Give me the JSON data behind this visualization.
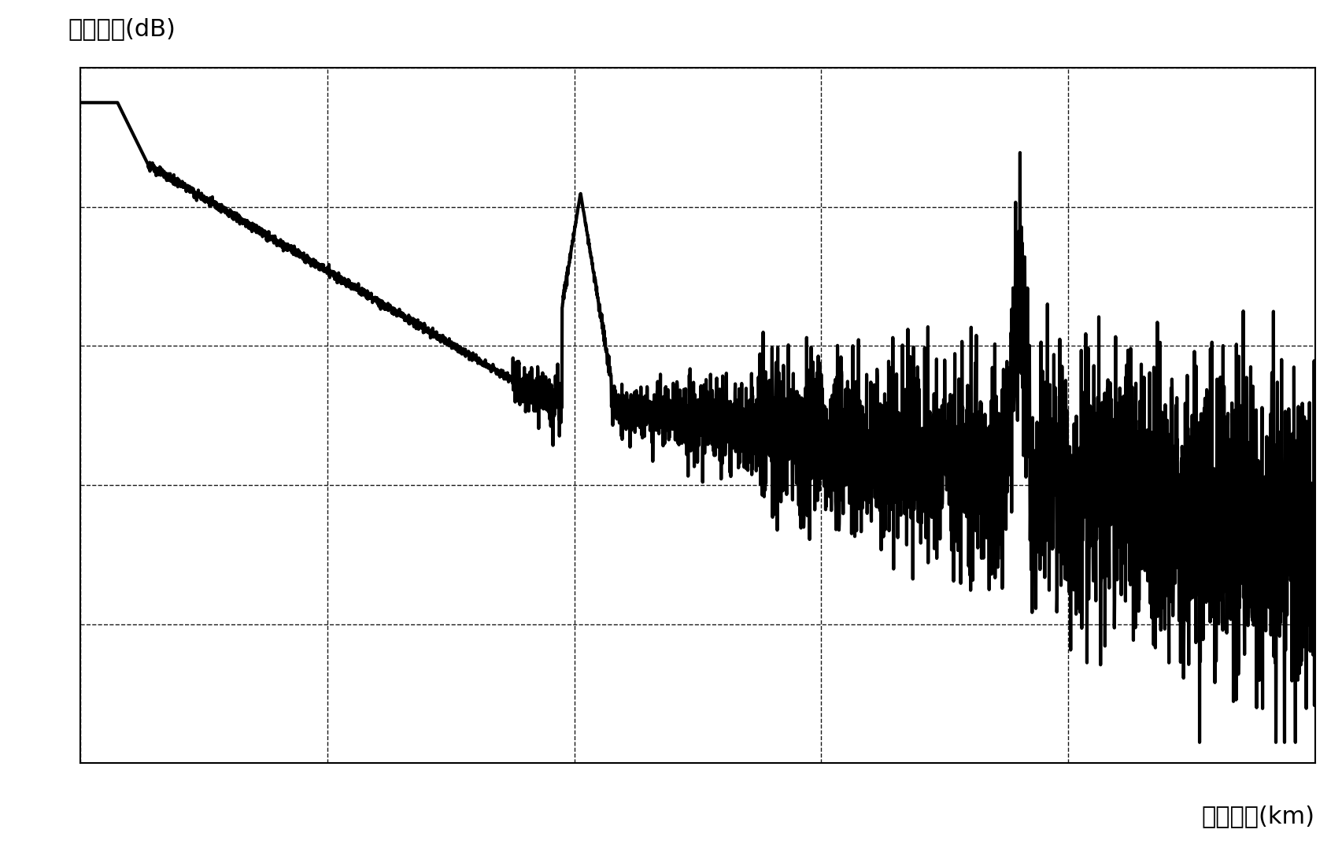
{
  "ylabel": "相对强度(dB)",
  "xlabel": "光纤长度(km)",
  "background_color": "#ffffff",
  "line_color": "#000000",
  "grid_color": "#000000",
  "line_width": 3.0,
  "fig_width": 17.05,
  "fig_height": 10.77,
  "dpi": 100,
  "xlim": [
    0,
    10
  ],
  "ylim": [
    0,
    10
  ],
  "ylabel_fontsize": 22,
  "xlabel_fontsize": 22,
  "grid_n_x": 5,
  "grid_n_y": 6
}
